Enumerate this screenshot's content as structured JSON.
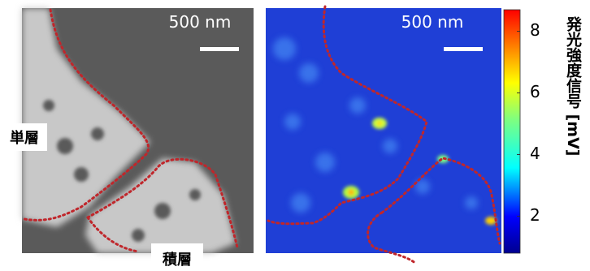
{
  "left_panel": {
    "scale_bar": "500 nm",
    "label_single": "単層",
    "label_stacked": "積層"
  },
  "right_panel": {
    "scale_bar": "500 nm"
  },
  "colorbar": {
    "label": "発光強度信号 [mV]",
    "lim": [
      0.8,
      8.7
    ],
    "ticks": [
      2,
      4,
      6,
      8
    ]
  }
}
